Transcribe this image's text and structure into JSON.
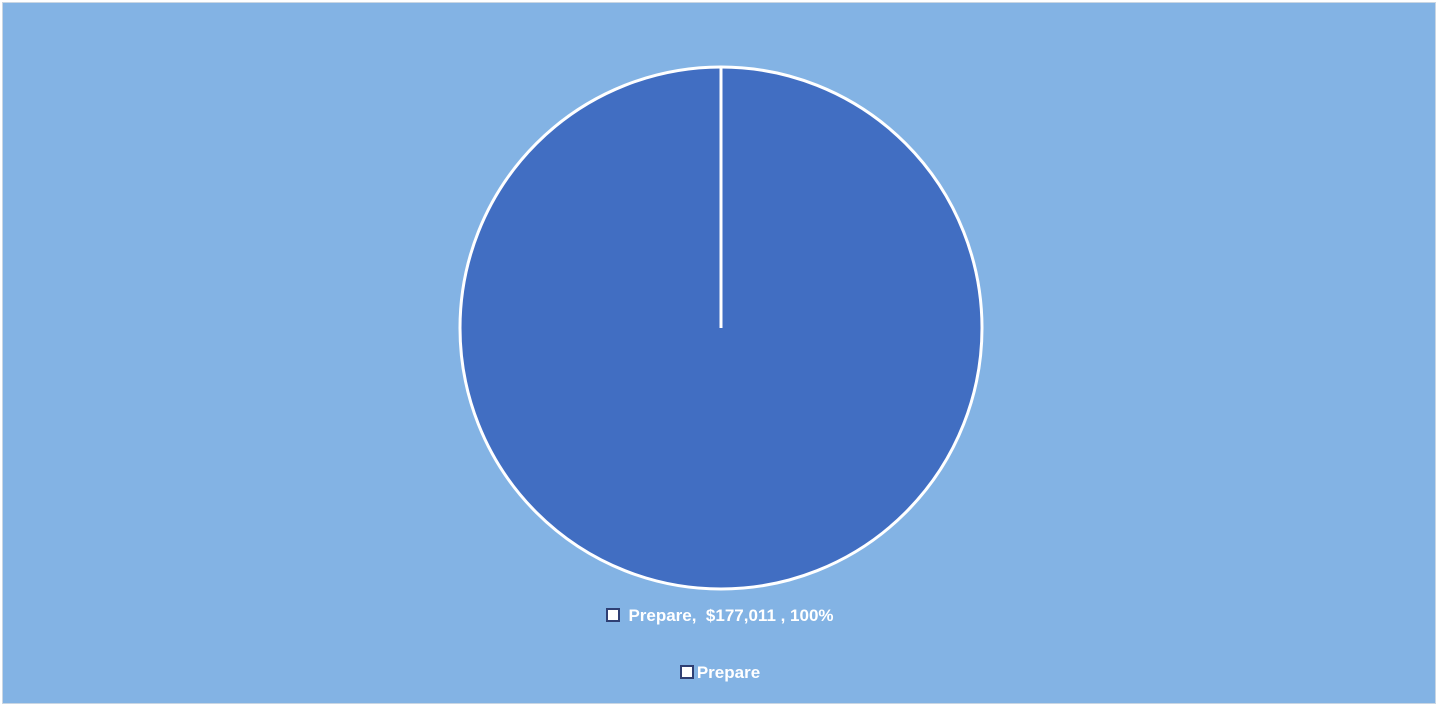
{
  "chart_data": {
    "type": "pie",
    "title": "",
    "slices": [
      {
        "category": "Prepare",
        "value": 177011,
        "percent": 100
      }
    ],
    "data_labels": [
      "Prepare,  $177,011 , 100%"
    ],
    "legend": {
      "placement": "bottom",
      "entries": [
        "Prepare"
      ]
    },
    "colors": {
      "background": "#83b3e4",
      "slice": "#416ec2",
      "slice_border": "#ffffff"
    }
  }
}
